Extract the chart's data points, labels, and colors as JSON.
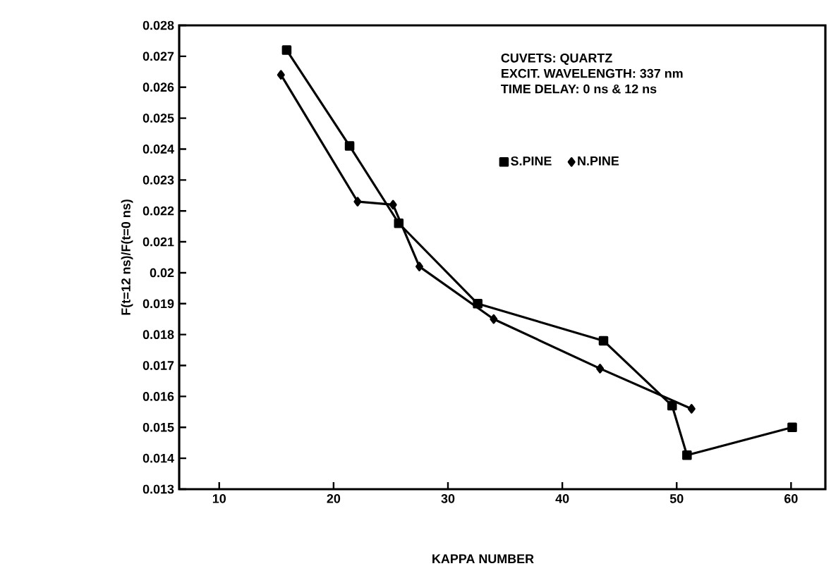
{
  "chart_data": {
    "type": "line",
    "xlabel": "KAPPA NUMBER",
    "ylabel": "F(t=12 ns)/F(t=0 ns)",
    "annotations": [
      "CUVETS:  QUARTZ",
      "EXCIT. WAVELENGTH:  337 nm",
      "TIME DELAY:  0 ns & 12 ns"
    ],
    "series": [
      {
        "name": "S.PINE",
        "color": "#000000",
        "marker": "square",
        "x": [
          15.9,
          21.4,
          25.7,
          32.6,
          43.6,
          49.6,
          50.9,
          60.1
        ],
        "values": [
          0.0272,
          0.0241,
          0.0216,
          0.019,
          0.0178,
          0.0157,
          0.0141,
          0.015
        ]
      },
      {
        "name": "N.PINE",
        "color": "#000000",
        "marker": "diamond",
        "x": [
          15.4,
          22.1,
          25.2,
          27.5,
          34.0,
          43.3,
          51.3
        ],
        "values": [
          0.0264,
          0.0223,
          0.0222,
          0.0202,
          0.0185,
          0.0169,
          0.0156
        ]
      }
    ],
    "xlim": [
      6.5,
      63
    ],
    "xticks": [
      10,
      20,
      30,
      40,
      50,
      60
    ],
    "ylim": [
      0.013,
      0.028
    ],
    "yticks": [
      0.013,
      0.014,
      0.015,
      0.016,
      0.017,
      0.018,
      0.019,
      0.02,
      0.021,
      0.022,
      0.023,
      0.024,
      0.025,
      0.026,
      0.027,
      0.028
    ],
    "legend": "top right",
    "grid": false,
    "line_style": "solid"
  }
}
